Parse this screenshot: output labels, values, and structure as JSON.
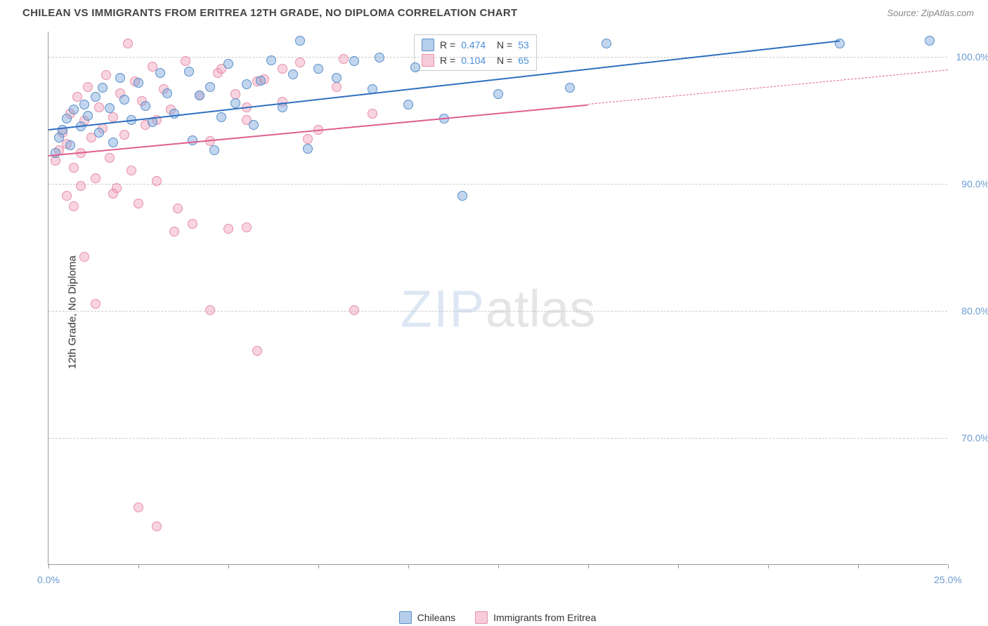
{
  "header": {
    "title": "CHILEAN VS IMMIGRANTS FROM ERITREA 12TH GRADE, NO DIPLOMA CORRELATION CHART",
    "source": "Source: ZipAtlas.com"
  },
  "chart": {
    "type": "scatter",
    "ylabel": "12th Grade, No Diploma",
    "xlim": [
      0,
      25
    ],
    "ylim": [
      60,
      102
    ],
    "xticks": [
      0,
      2.5,
      5,
      7.5,
      10,
      12.5,
      15,
      17.5,
      20,
      22.5,
      25
    ],
    "xtick_labels": {
      "0": "0.0%",
      "25": "25.0%"
    },
    "yticks": [
      70,
      80,
      90,
      100
    ],
    "ytick_labels": [
      "70.0%",
      "80.0%",
      "90.0%",
      "100.0%"
    ],
    "grid_color": "#cccccc",
    "axis_color": "#999999",
    "background_color": "#ffffff",
    "tick_label_color": "#6b9bd1",
    "marker_size": 14,
    "series": [
      {
        "name": "Chileans",
        "fill": "rgba(120,165,220,0.45)",
        "stroke": "#5a8fc8",
        "trend_color": "#2e6fc0",
        "trend": {
          "x1": 0,
          "y1": 94.3,
          "x2": 22,
          "y2": 101.3,
          "x2_dash": 22,
          "y2_dash": 101.3
        },
        "points": [
          [
            0.2,
            92.4
          ],
          [
            0.3,
            93.6
          ],
          [
            0.4,
            94.2
          ],
          [
            0.5,
            95.1
          ],
          [
            0.6,
            93.0
          ],
          [
            0.7,
            95.8
          ],
          [
            0.9,
            94.5
          ],
          [
            1.0,
            96.2
          ],
          [
            1.1,
            95.3
          ],
          [
            1.3,
            96.8
          ],
          [
            1.4,
            94.0
          ],
          [
            1.5,
            97.5
          ],
          [
            1.7,
            95.9
          ],
          [
            1.8,
            93.2
          ],
          [
            2.0,
            98.3
          ],
          [
            2.1,
            96.6
          ],
          [
            2.3,
            95.0
          ],
          [
            2.5,
            97.9
          ],
          [
            2.7,
            96.1
          ],
          [
            2.9,
            94.8
          ],
          [
            3.1,
            98.7
          ],
          [
            3.3,
            97.1
          ],
          [
            3.5,
            95.5
          ],
          [
            3.9,
            98.8
          ],
          [
            4.0,
            93.4
          ],
          [
            4.2,
            96.9
          ],
          [
            4.5,
            97.6
          ],
          [
            4.6,
            92.6
          ],
          [
            4.8,
            95.2
          ],
          [
            5.0,
            99.4
          ],
          [
            5.2,
            96.3
          ],
          [
            5.5,
            97.8
          ],
          [
            5.7,
            94.6
          ],
          [
            5.9,
            98.1
          ],
          [
            6.2,
            99.7
          ],
          [
            6.5,
            96.0
          ],
          [
            6.8,
            98.6
          ],
          [
            7.0,
            101.2
          ],
          [
            7.2,
            92.7
          ],
          [
            7.5,
            99.0
          ],
          [
            8.0,
            98.3
          ],
          [
            8.5,
            99.6
          ],
          [
            9.0,
            97.4
          ],
          [
            9.2,
            99.9
          ],
          [
            10.0,
            96.2
          ],
          [
            10.2,
            99.1
          ],
          [
            11.0,
            95.1
          ],
          [
            11.5,
            89.0
          ],
          [
            12.5,
            97.0
          ],
          [
            14.5,
            97.5
          ],
          [
            15.5,
            101.0
          ],
          [
            22.0,
            101.0
          ],
          [
            24.5,
            101.2
          ]
        ]
      },
      {
        "name": "Immigrants from Eritrea",
        "fill": "rgba(240,160,185,0.45)",
        "stroke": "#e58fab",
        "trend_color": "#e06090",
        "trend": {
          "x1": 0,
          "y1": 92.3,
          "x2": 15,
          "y2": 96.3,
          "x2_dash": 25,
          "y2_dash": 99.0
        },
        "points": [
          [
            0.2,
            91.8
          ],
          [
            0.3,
            92.6
          ],
          [
            0.4,
            94.0
          ],
          [
            0.5,
            93.1
          ],
          [
            0.6,
            95.5
          ],
          [
            0.7,
            91.2
          ],
          [
            0.8,
            96.8
          ],
          [
            0.9,
            92.4
          ],
          [
            1.0,
            94.9
          ],
          [
            1.1,
            97.6
          ],
          [
            1.2,
            93.6
          ],
          [
            1.3,
            90.4
          ],
          [
            1.4,
            96.0
          ],
          [
            1.5,
            94.3
          ],
          [
            1.6,
            98.5
          ],
          [
            1.7,
            92.0
          ],
          [
            1.8,
            95.2
          ],
          [
            1.9,
            89.6
          ],
          [
            2.0,
            97.1
          ],
          [
            2.1,
            93.8
          ],
          [
            2.2,
            101.0
          ],
          [
            2.3,
            91.0
          ],
          [
            2.4,
            98.0
          ],
          [
            2.5,
            88.4
          ],
          [
            2.6,
            96.5
          ],
          [
            2.7,
            94.6
          ],
          [
            2.9,
            99.2
          ],
          [
            3.0,
            90.2
          ],
          [
            3.2,
            97.4
          ],
          [
            3.4,
            95.8
          ],
          [
            3.6,
            88.0
          ],
          [
            3.8,
            99.6
          ],
          [
            4.0,
            86.8
          ],
          [
            4.2,
            96.9
          ],
          [
            4.5,
            93.3
          ],
          [
            4.7,
            98.7
          ],
          [
            5.0,
            86.4
          ],
          [
            5.2,
            97.0
          ],
          [
            5.5,
            95.0
          ],
          [
            5.8,
            76.8
          ],
          [
            6.0,
            98.2
          ],
          [
            6.5,
            96.4
          ],
          [
            7.0,
            99.5
          ],
          [
            7.5,
            94.2
          ],
          [
            8.0,
            97.6
          ],
          [
            8.5,
            80.0
          ],
          [
            1.0,
            84.2
          ],
          [
            1.3,
            80.5
          ],
          [
            0.5,
            89.0
          ],
          [
            0.7,
            88.2
          ],
          [
            0.9,
            89.8
          ],
          [
            1.8,
            89.2
          ],
          [
            2.5,
            64.5
          ],
          [
            3.0,
            63.0
          ],
          [
            3.5,
            86.2
          ],
          [
            4.5,
            80.0
          ],
          [
            5.5,
            86.5
          ],
          [
            5.8,
            98.0
          ],
          [
            8.2,
            99.8
          ],
          [
            9.0,
            95.5
          ],
          [
            6.5,
            99.0
          ],
          [
            7.2,
            93.5
          ],
          [
            4.8,
            99.0
          ],
          [
            5.5,
            96.0
          ],
          [
            3.0,
            95.0
          ]
        ]
      }
    ],
    "stats": [
      {
        "swatch_fill": "rgba(120,165,220,0.55)",
        "swatch_stroke": "#5a8fc8",
        "r": "0.474",
        "n": "53"
      },
      {
        "swatch_fill": "rgba(240,160,185,0.55)",
        "swatch_stroke": "#e58fab",
        "r": "0.104",
        "n": "65"
      }
    ],
    "bottom_legend": [
      {
        "swatch_fill": "rgba(120,165,220,0.55)",
        "swatch_stroke": "#5a8fc8",
        "label": "Chileans"
      },
      {
        "swatch_fill": "rgba(240,160,185,0.55)",
        "swatch_stroke": "#e58fab",
        "label": "Immigrants from Eritrea"
      }
    ],
    "watermark": {
      "part1": "ZIP",
      "part2": "atlas"
    }
  }
}
